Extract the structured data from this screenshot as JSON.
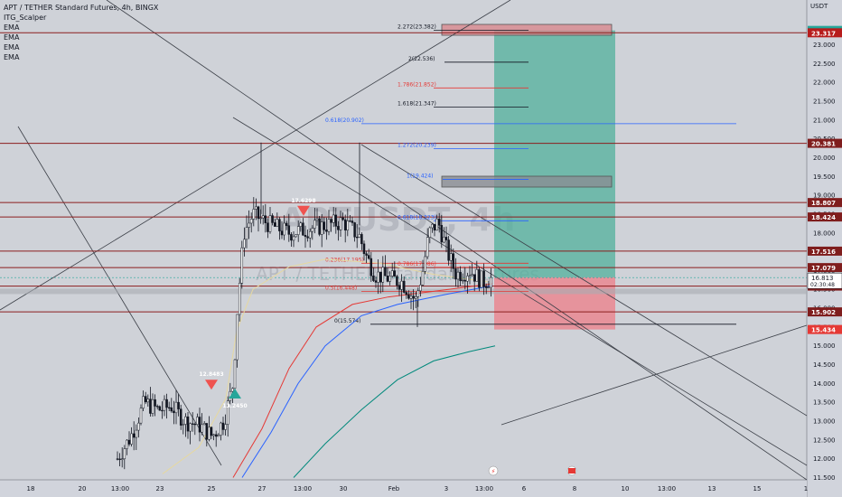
{
  "header": {
    "title": "APT / TETHER Standard Futures, 4h, BINGX",
    "indicators": [
      "ITG_Scalper",
      "EMA",
      "EMA",
      "EMA",
      "EMA"
    ]
  },
  "watermark": {
    "symbol": "APTUSDT, 4h",
    "name": "APT / TETHER Standard Futures"
  },
  "price_axis": {
    "currency": "USDT",
    "ticks": [
      "23.000",
      "22.500",
      "22.000",
      "21.500",
      "21.000",
      "20.500",
      "20.000",
      "19.500",
      "19.000",
      "18.500",
      "18.000",
      "17.500",
      "17.000",
      "16.500",
      "16.000",
      "15.500",
      "15.000",
      "14.500",
      "14.000",
      "13.500",
      "13.000",
      "12.500",
      "12.000",
      "11.500"
    ],
    "tags": [
      {
        "label": "23.380",
        "price": 23.38,
        "color": "#26a69a"
      },
      {
        "label": "23.317",
        "price": 23.317,
        "color": "#b71c1c"
      },
      {
        "label": "20.381",
        "price": 20.381,
        "color": "#7f1d1d"
      },
      {
        "label": "18.807",
        "price": 18.807,
        "color": "#7f1d1d"
      },
      {
        "label": "18.424",
        "price": 18.424,
        "color": "#7f1d1d"
      },
      {
        "label": "17.516",
        "price": 17.516,
        "color": "#7f1d1d"
      },
      {
        "label": "17.079",
        "price": 17.079,
        "color": "#7f1d1d"
      },
      {
        "label": "16.820",
        "price": 16.82,
        "color": "#26a69a"
      },
      {
        "label": "16.588",
        "price": 16.588,
        "color": "#7f1d1d"
      },
      {
        "label": "15.902",
        "price": 15.902,
        "color": "#7f1d1d"
      },
      {
        "label": "15.434",
        "price": 15.434,
        "color": "#e53935"
      }
    ],
    "current": {
      "price": "16.813",
      "countdown": "02:30:48",
      "value": 16.813
    }
  },
  "time_axis": {
    "ticks": [
      "18",
      "20",
      "13:00",
      "23",
      "25",
      "27",
      "13:00",
      "30",
      "Feb",
      "3",
      "13:00",
      "6",
      "8",
      "10",
      "13:00",
      "13",
      "15",
      "1"
    ]
  },
  "horizontal_lines": [
    23.317,
    20.381,
    18.807,
    18.424,
    17.516,
    17.079,
    16.588,
    15.902
  ],
  "fib_levels": [
    {
      "label": "2.272(23.382)",
      "price": 23.382,
      "color": "#131722"
    },
    {
      "label": "2(22.536)",
      "price": 22.536,
      "color": "#131722"
    },
    {
      "label": "1.786(21.852)",
      "price": 21.852,
      "color": "#e53935"
    },
    {
      "label": "1.618(21.347)",
      "price": 21.347,
      "color": "#131722"
    },
    {
      "label": "0.618(20.902)",
      "price": 20.902,
      "color": "#2962ff"
    },
    {
      "label": "1.272(20.239)",
      "price": 20.239,
      "color": "#2962ff"
    },
    {
      "label": "1(19.424)",
      "price": 19.424,
      "color": "#2962ff"
    },
    {
      "label": "0.618(18.323)",
      "price": 18.323,
      "color": "#2962ff"
    },
    {
      "label": "0.236(17.195)",
      "price": 17.195,
      "color": "#e53935"
    },
    {
      "label": "0.786(17.086)",
      "price": 17.086,
      "color": "#e53935"
    },
    {
      "label": "0.5(16.448)",
      "price": 16.448,
      "color": "#e53935"
    },
    {
      "label": "0(15.574)",
      "price": 15.574,
      "color": "#131722"
    }
  ],
  "signals": [
    {
      "label": "17.6298",
      "type": "sell",
      "price": 18.72
    },
    {
      "label": "12.8483",
      "type": "sell",
      "price": 14.1
    },
    {
      "label": "13.2450",
      "type": "buy",
      "price": 13.6
    }
  ],
  "position": {
    "entry": 16.82,
    "target": 23.38,
    "stop": 15.434
  }
}
